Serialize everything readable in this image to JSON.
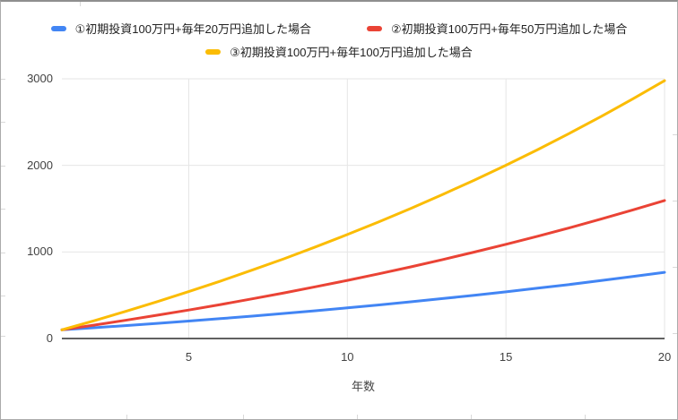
{
  "chart_data": {
    "type": "line",
    "title": "",
    "xlabel": "年数",
    "ylabel": "",
    "xlim": [
      1,
      20
    ],
    "ylim": [
      0,
      3000
    ],
    "x_ticks": [
      5,
      10,
      15,
      20
    ],
    "y_ticks": [
      0,
      1000,
      2000,
      3000
    ],
    "grid": true,
    "legend_position": "top",
    "x": [
      1,
      2,
      3,
      4,
      5,
      6,
      7,
      8,
      9,
      10,
      11,
      12,
      13,
      14,
      15,
      16,
      17,
      18,
      19,
      20
    ],
    "series": [
      {
        "name": "①初期投資100万円+毎年20万円追加した場合",
        "color": "#4285F4",
        "values": [
          100,
          124,
          149,
          175,
          202,
          230,
          259,
          290,
          321,
          354,
          388,
          424,
          461,
          499,
          539,
          581,
          624,
          669,
          716,
          764
        ]
      },
      {
        "name": "②初期投資100万円+毎年50万円追加した場合",
        "color": "#EA4335",
        "values": [
          100,
          154,
          210,
          269,
          329,
          392,
          458,
          527,
          598,
          671,
          748,
          828,
          911,
          998,
          1088,
          1181,
          1279,
          1380,
          1485,
          1594
        ]
      },
      {
        "name": "③初期投資100万円+毎年100万円追加した場合",
        "color": "#FBBC04",
        "values": [
          100,
          204,
          312,
          425,
          542,
          663,
          790,
          921,
          1058,
          1201,
          1349,
          1503,
          1663,
          1829,
          2002,
          2182,
          2370,
          2565,
          2768,
          2978
        ]
      }
    ],
    "colors": {
      "gridline": "#e6e6e6",
      "axis_line": "#616161",
      "tick_text": "#424242",
      "legend_text": "#212121",
      "background": "#ffffff"
    }
  }
}
